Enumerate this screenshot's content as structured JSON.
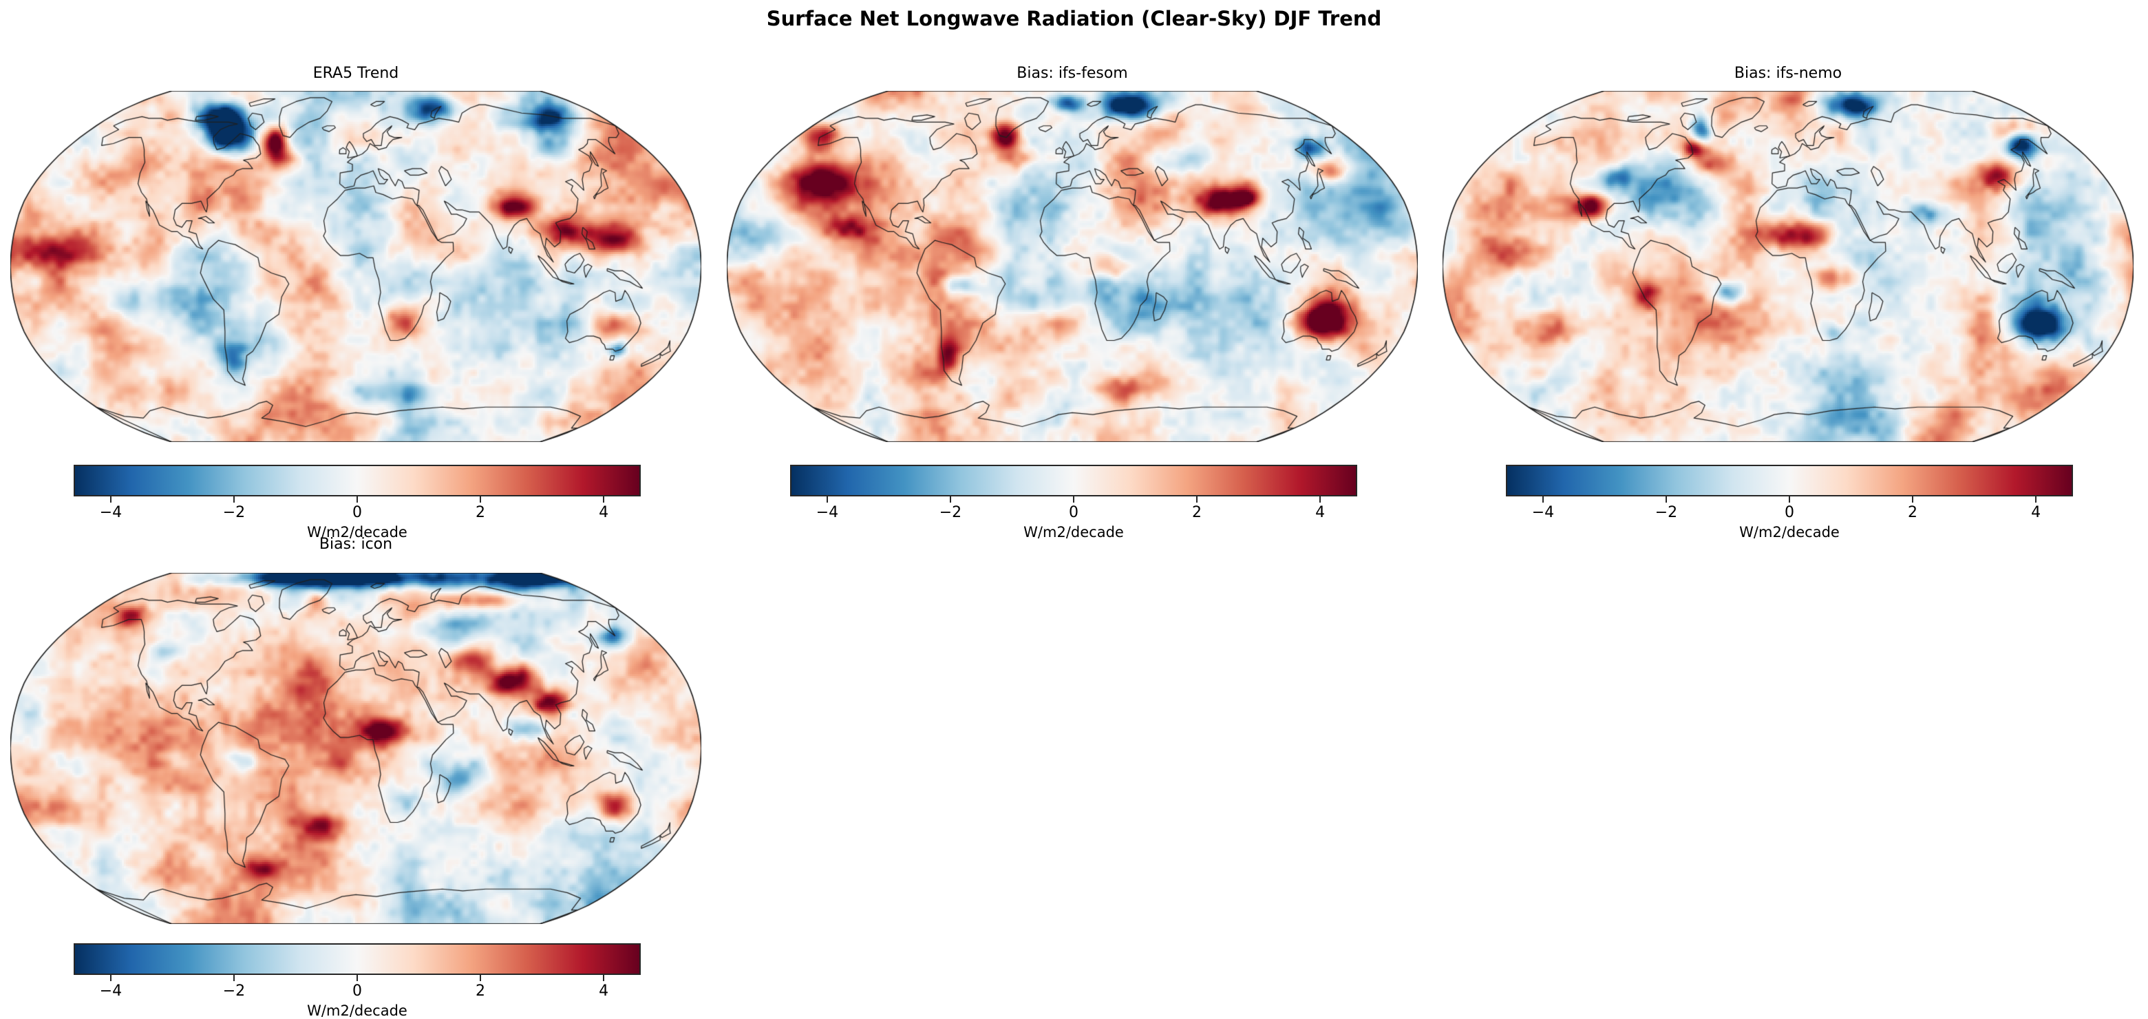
{
  "chart_data": {
    "type": "heatmap",
    "projection": "robinson",
    "suptitle": "Surface Net Longwave Radiation (Clear-Sky) DJF Trend",
    "colorbar": {
      "label": "W/m2/decade",
      "tick_values": [
        -4,
        -2,
        0,
        2,
        4
      ],
      "tick_labels": [
        "−4",
        "−2",
        "0",
        "2",
        "4"
      ],
      "vmin": -4.58,
      "vmax": 4.58,
      "colormap": "RdBu_r",
      "colors": [
        "#053061",
        "#2166ac",
        "#4393c3",
        "#92c5de",
        "#d1e5f0",
        "#f7f7f7",
        "#fddbc7",
        "#f4a582",
        "#d6604d",
        "#b2182b",
        "#67001f"
      ]
    },
    "panels": [
      {
        "title": "ERA5 Trend",
        "seed": 11,
        "features": [
          [
            -85,
            62,
            16,
            9,
            -6
          ],
          [
            -100,
            72,
            18,
            7,
            -5
          ],
          [
            -52,
            58,
            9,
            8,
            6
          ],
          [
            -45,
            49,
            13,
            7,
            2.5
          ],
          [
            60,
            76,
            22,
            7,
            -4.5
          ],
          [
            140,
            70,
            22,
            7,
            -4.5
          ],
          [
            122,
            55,
            13,
            7,
            -3
          ],
          [
            85,
            28,
            11,
            6,
            3.5
          ],
          [
            107,
            17,
            12,
            7,
            3.2
          ],
          [
            137,
            13,
            16,
            8,
            4
          ],
          [
            25,
            -25,
            11,
            9,
            3.8
          ],
          [
            139,
            -26,
            11,
            7,
            2.8
          ],
          [
            146,
            -38,
            5,
            4,
            -3.2
          ],
          [
            -120,
            -15,
            28,
            10,
            -2
          ],
          [
            -155,
            8,
            30,
            9,
            1.8
          ],
          [
            -72,
            -43,
            8,
            9,
            -2.8
          ],
          [
            20,
            -58,
            50,
            7,
            -1.6
          ],
          [
            -135,
            40,
            18,
            8,
            1.6
          ]
        ]
      },
      {
        "title": "Bias: ifs-fesom",
        "seed": 22,
        "features": [
          [
            45,
            78,
            22,
            7,
            -6
          ],
          [
            -5,
            80,
            13,
            5,
            -5
          ],
          [
            148,
            55,
            9,
            6,
            -4.5
          ],
          [
            135,
            -25,
            14,
            10,
            6
          ],
          [
            80,
            30,
            11,
            7,
            4.5
          ],
          [
            -45,
            61,
            9,
            7,
            5
          ],
          [
            -30,
            50,
            13,
            7,
            3
          ],
          [
            -145,
            40,
            18,
            9,
            3.2
          ],
          [
            -120,
            18,
            13,
            7,
            2.5
          ],
          [
            20,
            0,
            13,
            7,
            3
          ],
          [
            -60,
            -8,
            9,
            5,
            -2.8
          ],
          [
            -70,
            -40,
            7,
            9,
            3
          ],
          [
            150,
            44,
            11,
            6,
            3
          ],
          [
            62,
            50,
            18,
            9,
            -2.2
          ],
          [
            30,
            -55,
            35,
            7,
            2
          ],
          [
            -168,
            62,
            13,
            7,
            2.5
          ],
          [
            95,
            32,
            9,
            6,
            4
          ],
          [
            0,
            -25,
            14,
            8,
            1.8
          ]
        ]
      },
      {
        "title": "Bias: ifs-nemo",
        "seed": 33,
        "features": [
          [
            50,
            78,
            22,
            7,
            -5.5
          ],
          [
            148,
            57,
            10,
            7,
            -6
          ],
          [
            -60,
            64,
            7,
            7,
            -4.5
          ],
          [
            133,
            -26,
            13,
            9,
            -5
          ],
          [
            -32,
            -12,
            9,
            6,
            -4
          ],
          [
            5,
            15,
            18,
            8,
            4.5
          ],
          [
            25,
            -5,
            11,
            7,
            3
          ],
          [
            -105,
            28,
            11,
            7,
            5
          ],
          [
            -97,
            42,
            9,
            5,
            -2.5
          ],
          [
            120,
            42,
            13,
            8,
            4
          ],
          [
            -45,
            48,
            13,
            7,
            3
          ],
          [
            -60,
            55,
            7,
            5,
            3.5
          ],
          [
            75,
            25,
            9,
            6,
            -2.5
          ],
          [
            -130,
            -28,
            16,
            9,
            2.8
          ],
          [
            -76,
            -13,
            7,
            7,
            3
          ],
          [
            160,
            65,
            18,
            7,
            2.5
          ],
          [
            25,
            -30,
            7,
            5,
            -2.2
          ],
          [
            -150,
            5,
            25,
            8,
            1.8
          ]
        ]
      },
      {
        "title": "Bias: icon",
        "seed": 44,
        "features": [
          [
            60,
            86,
            80,
            6,
            -5.5
          ],
          [
            -60,
            86,
            80,
            5,
            -5
          ],
          [
            170,
            85,
            40,
            5,
            -5
          ],
          [
            95,
            70,
            35,
            5,
            3
          ],
          [
            85,
            32,
            14,
            8,
            5.5
          ],
          [
            102,
            22,
            11,
            7,
            4.5
          ],
          [
            65,
            41,
            13,
            7,
            3
          ],
          [
            15,
            8,
            14,
            7,
            4
          ],
          [
            138,
            -26,
            11,
            8,
            4.5
          ],
          [
            -150,
            63,
            11,
            5,
            2.5
          ],
          [
            -30,
            70,
            9,
            7,
            3
          ],
          [
            45,
            55,
            22,
            9,
            -2.5
          ],
          [
            -60,
            -5,
            9,
            6,
            -2.5
          ],
          [
            25,
            -25,
            11,
            7,
            -2.5
          ],
          [
            -20,
            -35,
            13,
            7,
            2.8
          ],
          [
            90,
            10,
            11,
            6,
            -2.2
          ],
          [
            155,
            52,
            9,
            5,
            -3.5
          ],
          [
            -110,
            45,
            9,
            5,
            -2.2
          ],
          [
            -60,
            -55,
            13,
            5,
            2.5
          ],
          [
            60,
            -12,
            18,
            9,
            -1.8
          ],
          [
            -150,
            -30,
            20,
            10,
            1.8
          ]
        ]
      }
    ]
  }
}
